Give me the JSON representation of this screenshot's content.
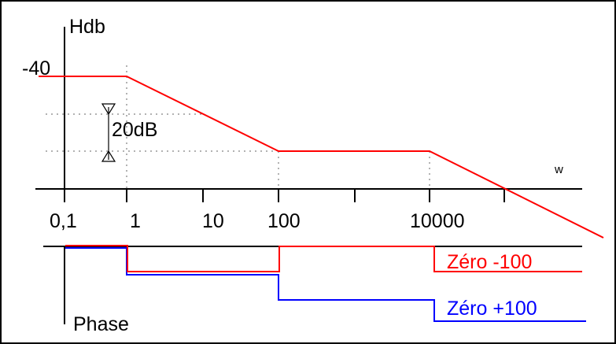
{
  "figure": {
    "y_axis_label": "Hdb",
    "x_axis_label": "w",
    "level_label": "-40",
    "interval_label": "20dB",
    "tick_labels": [
      "0,1",
      "1",
      "10",
      "100",
      "10000"
    ],
    "phase_label": "Phase",
    "series_labels": [
      "Zéro -100",
      "Zéro +100"
    ]
  },
  "colors": {
    "red": "#ff0000",
    "blue": "#0000ff",
    "black": "#000000",
    "border": "#000000"
  }
}
